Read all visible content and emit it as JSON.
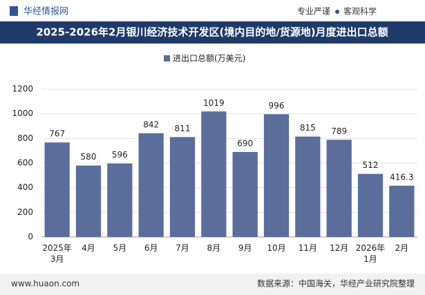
{
  "header": {
    "logo": "华经情报网",
    "tagline_1": "专业严谨",
    "tagline_2": "客观科学"
  },
  "chart_data": {
    "type": "bar",
    "title": "2025-2026年2月银川经济技术开发区(境内目的地/货源地)月度进出口总额",
    "categories": [
      "2025年\n3月",
      "4月",
      "5月",
      "6月",
      "7月",
      "8月",
      "9月",
      "10月",
      "11月",
      "12月",
      "2026年\n1月",
      "2月"
    ],
    "series": [
      {
        "name": "进出口总额(万美元)",
        "color": "#5b6d9b",
        "values": [
          767,
          580,
          596,
          842,
          811,
          1019,
          690,
          996,
          815,
          789,
          512,
          416.3
        ]
      }
    ],
    "ylim": [
      0,
      1200
    ],
    "yticks": [
      0,
      200,
      400,
      600,
      800,
      1000,
      1200
    ],
    "grid": true
  },
  "footer": {
    "website": "www.huaon.com",
    "source": "数据来源：中国海关，华经产业研究院整理"
  }
}
